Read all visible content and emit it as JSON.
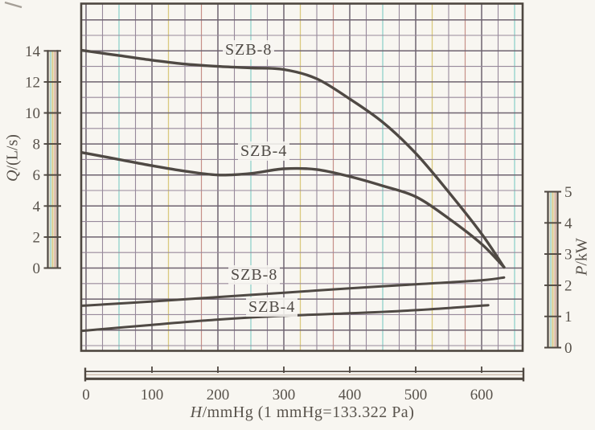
{
  "chart_data": {
    "type": "line",
    "title": "",
    "x_axis": {
      "label": "H/mmHg (1 mmHg=133.322 Pa)",
      "label_var": "H",
      "label_rest": "/mmHg (1 mmHg=133.322 Pa)",
      "unit": "mmHg",
      "ticks": [
        0,
        100,
        200,
        300,
        400,
        500,
        600
      ],
      "range": [
        0,
        660
      ]
    },
    "y_axis_left": {
      "label": "Q/(L/s)",
      "label_var": "Q",
      "label_rest": "/(L/s)",
      "unit": "L/s",
      "ticks": [
        14,
        12,
        10,
        8,
        6,
        4,
        2,
        0
      ],
      "range": [
        0,
        14
      ]
    },
    "y_axis_right": {
      "label": "P/kW",
      "label_var": "P",
      "label_rest": "/kW",
      "unit": "kW",
      "ticks": [
        5,
        4,
        3,
        2,
        1,
        0
      ],
      "range": [
        0,
        5
      ]
    },
    "series": [
      {
        "name": "SZB-8",
        "quantity": "Q",
        "axis": "left",
        "points": [
          [
            0,
            14.0
          ],
          [
            50,
            13.7
          ],
          [
            100,
            13.4
          ],
          [
            150,
            13.15
          ],
          [
            200,
            13.0
          ],
          [
            250,
            12.9
          ],
          [
            300,
            12.8
          ],
          [
            350,
            12.2
          ],
          [
            400,
            10.9
          ],
          [
            450,
            9.4
          ],
          [
            500,
            7.4
          ],
          [
            550,
            4.9
          ],
          [
            600,
            2.2
          ],
          [
            634,
            0.05
          ]
        ]
      },
      {
        "name": "SZB-4",
        "quantity": "Q",
        "axis": "left",
        "points": [
          [
            0,
            7.4
          ],
          [
            50,
            7.0
          ],
          [
            100,
            6.6
          ],
          [
            150,
            6.25
          ],
          [
            200,
            6.0
          ],
          [
            250,
            6.1
          ],
          [
            300,
            6.4
          ],
          [
            350,
            6.35
          ],
          [
            400,
            5.9
          ],
          [
            450,
            5.3
          ],
          [
            500,
            4.6
          ],
          [
            550,
            3.2
          ],
          [
            600,
            1.55
          ],
          [
            634,
            0.05
          ]
        ]
      },
      {
        "name": "SZB-8",
        "quantity": "P",
        "axis": "right",
        "points": [
          [
            0,
            1.35
          ],
          [
            100,
            1.48
          ],
          [
            200,
            1.62
          ],
          [
            300,
            1.76
          ],
          [
            400,
            1.9
          ],
          [
            500,
            2.03
          ],
          [
            600,
            2.16
          ],
          [
            634,
            2.25
          ]
        ]
      },
      {
        "name": "SZB-4",
        "quantity": "P",
        "axis": "right",
        "points": [
          [
            0,
            0.55
          ],
          [
            100,
            0.73
          ],
          [
            200,
            0.9
          ],
          [
            300,
            1.02
          ],
          [
            400,
            1.1
          ],
          [
            500,
            1.2
          ],
          [
            610,
            1.36
          ]
        ]
      }
    ],
    "grid": {
      "on": true,
      "minor_step_x_mmHg": 25,
      "minor_step_y_Ls": 1
    },
    "legend_position": "inline-labels",
    "colors": {
      "curve": "#4f4944",
      "grid_base": "#97899b",
      "grid_major": "#6e6370",
      "grid_cyan": "#8fd2cb",
      "grid_pink": "#c68f88",
      "grid_yellow": "#d9c97e",
      "axis_dark": "#4e4740",
      "bar_fill": "#eae3cf",
      "bar_stripe_cyan": "#9fd8d0",
      "bar_stripe_pink": "#d4a49d",
      "bar_stripe_yellow": "#d9cb86",
      "text": "#58524b",
      "background": "#f8f6f1"
    }
  }
}
